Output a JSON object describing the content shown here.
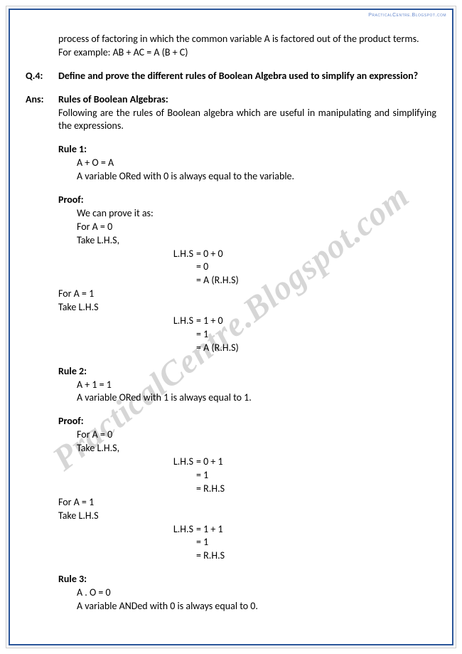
{
  "header": {
    "url": "PracticalCentre.Blogspot.com"
  },
  "watermark": "PracticalCentre.Blogspot.com",
  "intro": {
    "line1": "process of factoring in which the common variable A is factored out of the product terms.",
    "line2": "For example: AB + AC = A (B + C)"
  },
  "q4": {
    "label": "Q.4:",
    "text": "Define and prove the different rules of Boolean Algebra used to simplify an expression?"
  },
  "ans": {
    "label": "Ans:",
    "heading": "Rules of Boolean Algebras:",
    "text": "Following are the rules of Boolean algebra which are useful in manipulating and simplifying the expressions."
  },
  "rule1": {
    "title": "Rule 1:",
    "expr": "A + O = A",
    "desc": "A variable ORed with 0 is always equal to the variable.",
    "proof_label": "Proof:",
    "proof_intro": "We can prove it as:",
    "case1a": "For A = 0",
    "case1b": "Take L.H.S,",
    "eq1": [
      {
        "lhs": "L.H.S",
        "val": "= 0 + 0"
      },
      {
        "lhs": "",
        "val": "= 0"
      },
      {
        "lhs": "",
        "val": "= A (R.H.S)"
      }
    ],
    "case2a": "For A = 1",
    "case2b": "Take L.H.S",
    "eq2": [
      {
        "lhs": "L.H.S",
        "val": "= 1 + 0"
      },
      {
        "lhs": "",
        "val": "= 1"
      },
      {
        "lhs": "",
        "val": "= A (R.H.S)"
      }
    ]
  },
  "rule2": {
    "title": "Rule 2:",
    "expr": "A + 1 = 1",
    "desc": "A variable ORed with 1 is always equal to 1.",
    "proof_label": "Proof:",
    "case1a": "For A = 0",
    "case1b": "Take L.H.S,",
    "eq1": [
      {
        "lhs": "L.H.S",
        "val": "= 0 + 1"
      },
      {
        "lhs": "",
        "val": "= 1"
      },
      {
        "lhs": "",
        "val": "= R.H.S"
      }
    ],
    "case2a": "For A = 1",
    "case2b": "Take L.H.S",
    "eq2": [
      {
        "lhs": "L.H.S",
        "val": "= 1 + 1"
      },
      {
        "lhs": "",
        "val": "= 1"
      },
      {
        "lhs": "",
        "val": "= R.H.S"
      }
    ]
  },
  "rule3": {
    "title": "Rule 3:",
    "expr": "A . O = 0",
    "desc": "A variable ANDed with 0 is always equal to 0."
  },
  "colors": {
    "border": "#2a5599",
    "text": "#000000",
    "link": "#6688cc",
    "watermark": "rgba(120,120,120,0.30)"
  }
}
